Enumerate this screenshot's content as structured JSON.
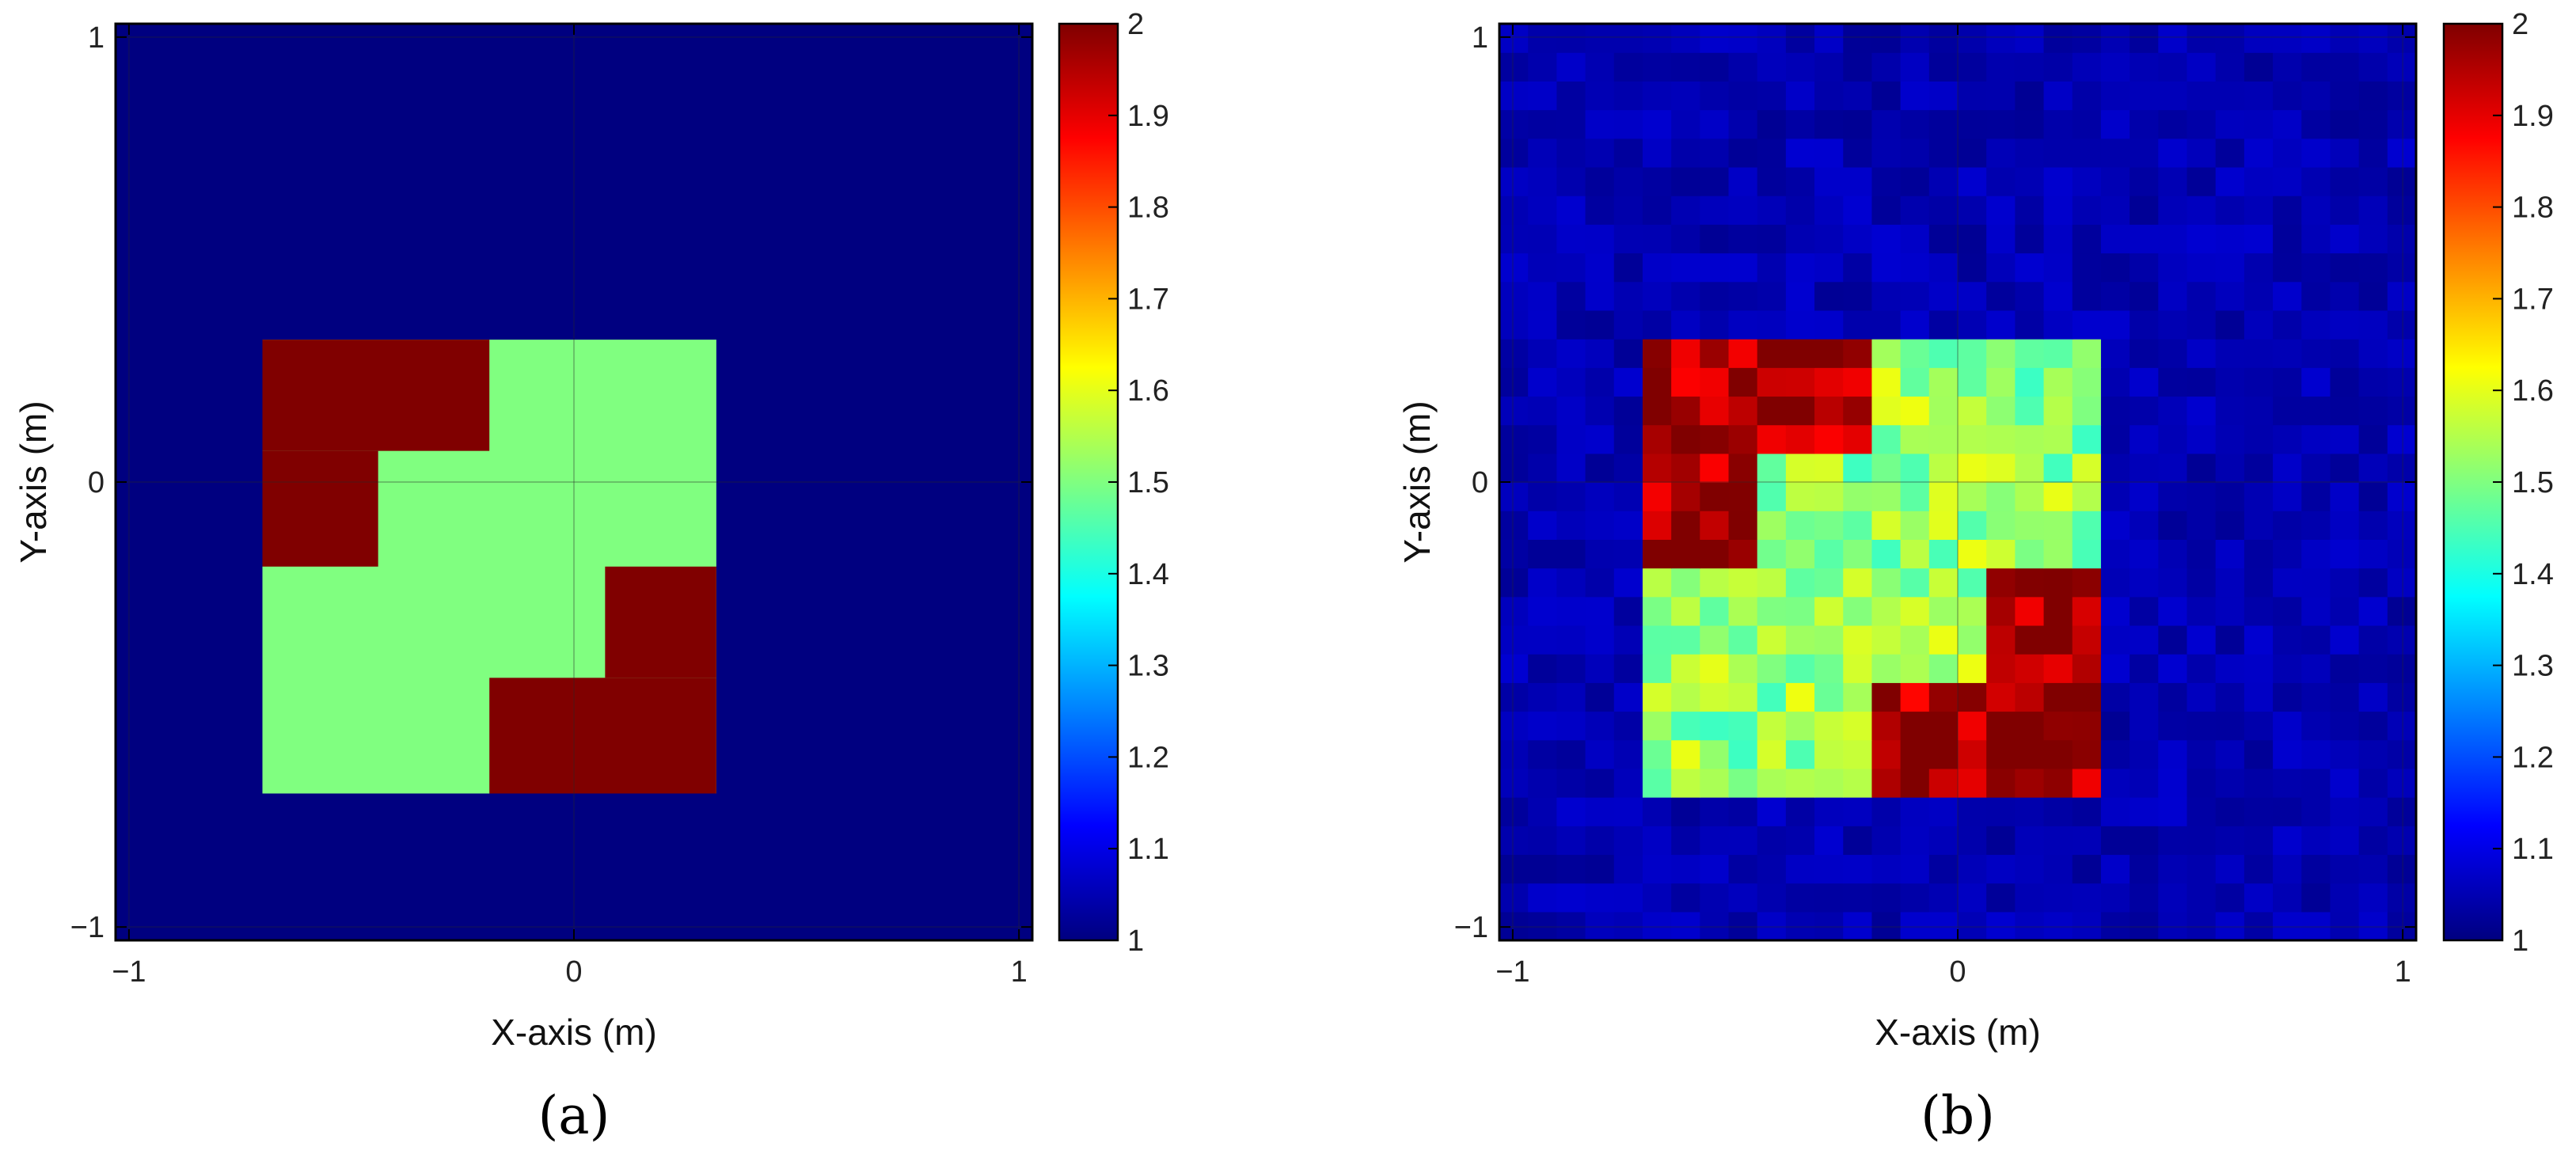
{
  "chart_data": [
    {
      "type": "heatmap",
      "panel_label": "(a)",
      "xlabel": "X-axis (m)",
      "ylabel": "Y-axis (m)",
      "xlim": [
        -1.03,
        1.03
      ],
      "ylim": [
        -1.03,
        1.03
      ],
      "xticks": [
        -1,
        0,
        1
      ],
      "xtick_labels": [
        "−1",
        "0",
        "1"
      ],
      "yticks": [
        -1,
        0,
        1
      ],
      "ytick_labels": [
        "−1",
        "0",
        "1"
      ],
      "grid": true,
      "colormap": "jet",
      "clim": [
        1,
        2
      ],
      "colorbar_ticks": [
        1,
        1.1,
        1.2,
        1.3,
        1.4,
        1.5,
        1.6,
        1.7,
        1.8,
        1.9,
        2
      ],
      "colorbar_tick_labels": [
        "1",
        "1.1",
        "1.2",
        "1.3",
        "1.4",
        "1.5",
        "1.6",
        "1.7",
        "1.8",
        "1.9",
        "2"
      ],
      "background_value": 1,
      "regions": [
        {
          "value": 1.5,
          "x": [
            -0.7,
            0.32
          ],
          "y": [
            -0.7,
            0.32
          ]
        },
        {
          "value": 2.0,
          "x": [
            -0.7,
            -0.19
          ],
          "y": [
            0.07,
            0.32
          ]
        },
        {
          "value": 2.0,
          "x": [
            -0.7,
            -0.44
          ],
          "y": [
            -0.19,
            0.07
          ]
        },
        {
          "value": 2.0,
          "x": [
            0.07,
            0.32
          ],
          "y": [
            -0.44,
            -0.19
          ]
        },
        {
          "value": 2.0,
          "x": [
            -0.19,
            0.32
          ],
          "y": [
            -0.7,
            -0.44
          ]
        }
      ]
    },
    {
      "type": "heatmap",
      "panel_label": "(b)",
      "xlabel": "X-axis (m)",
      "ylabel": "Y-axis (m)",
      "xlim": [
        -1.03,
        1.03
      ],
      "ylim": [
        -1.03,
        1.03
      ],
      "xticks": [
        -1,
        0,
        1
      ],
      "xtick_labels": [
        "−1",
        "0",
        "1"
      ],
      "yticks": [
        -1,
        0,
        1
      ],
      "ytick_labels": [
        "−1",
        "0",
        "1"
      ],
      "grid": true,
      "colormap": "jet",
      "clim": [
        1,
        2
      ],
      "colorbar_ticks": [
        1,
        1.1,
        1.2,
        1.3,
        1.4,
        1.5,
        1.6,
        1.7,
        1.8,
        1.9,
        2
      ],
      "colorbar_tick_labels": [
        "1",
        "1.1",
        "1.2",
        "1.3",
        "1.4",
        "1.5",
        "1.6",
        "1.7",
        "1.8",
        "1.9",
        "2"
      ],
      "grid_cells": 32,
      "background_value": 1.02,
      "background_noise": 0.06,
      "region_noise": 0.09,
      "regions": [
        {
          "value": 1.52,
          "x": [
            -0.7,
            0.32
          ],
          "y": [
            -0.7,
            0.32
          ]
        },
        {
          "value": 1.96,
          "x": [
            -0.7,
            -0.19
          ],
          "y": [
            0.07,
            0.32
          ]
        },
        {
          "value": 1.96,
          "x": [
            -0.7,
            -0.44
          ],
          "y": [
            -0.19,
            0.07
          ]
        },
        {
          "value": 1.96,
          "x": [
            0.07,
            0.32
          ],
          "y": [
            -0.44,
            -0.19
          ]
        },
        {
          "value": 1.96,
          "x": [
            -0.19,
            0.32
          ],
          "y": [
            -0.7,
            -0.44
          ]
        }
      ]
    }
  ]
}
